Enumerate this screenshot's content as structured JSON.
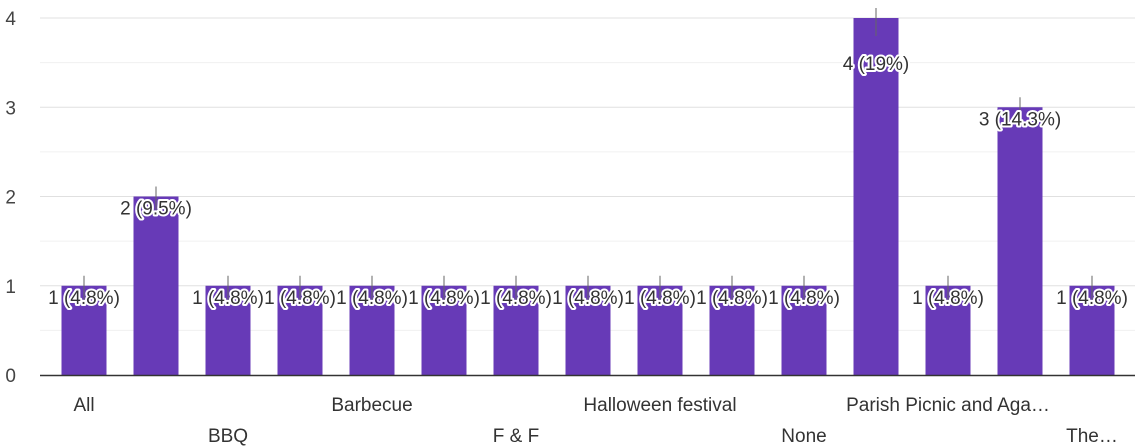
{
  "chart_data": {
    "type": "bar",
    "categories": [
      "All",
      "",
      "BBQ",
      "",
      "Barbecue",
      "",
      "F & F",
      "",
      "Halloween festival",
      "",
      "None",
      "",
      "Parish Picnic and Aga…",
      "",
      "The…"
    ],
    "values": [
      1,
      2,
      1,
      1,
      1,
      1,
      1,
      1,
      1,
      1,
      1,
      4,
      1,
      3,
      1
    ],
    "data_labels": [
      "1 (4.8%)",
      "2 (9.5%)",
      "1 (4.8%)",
      "1 (4.8%)",
      "1 (4.8%)",
      "1 (4.8%)",
      "1 (4.8%)",
      "1 (4.8%)",
      "1 (4.8%)",
      "1 (4.8%)",
      "1 (4.8%)",
      "4 (19%)",
      "1 (4.8%)",
      "3 (14.3%)",
      "1 (4.8%)"
    ],
    "yticks": [
      "0",
      "1",
      "2",
      "3",
      "4"
    ],
    "ylim": [
      0,
      4
    ],
    "grid": true,
    "colors": {
      "bar": "#673ab7",
      "grid": "#e0e0e0",
      "axis": "#333333",
      "leader": "#666666"
    }
  }
}
